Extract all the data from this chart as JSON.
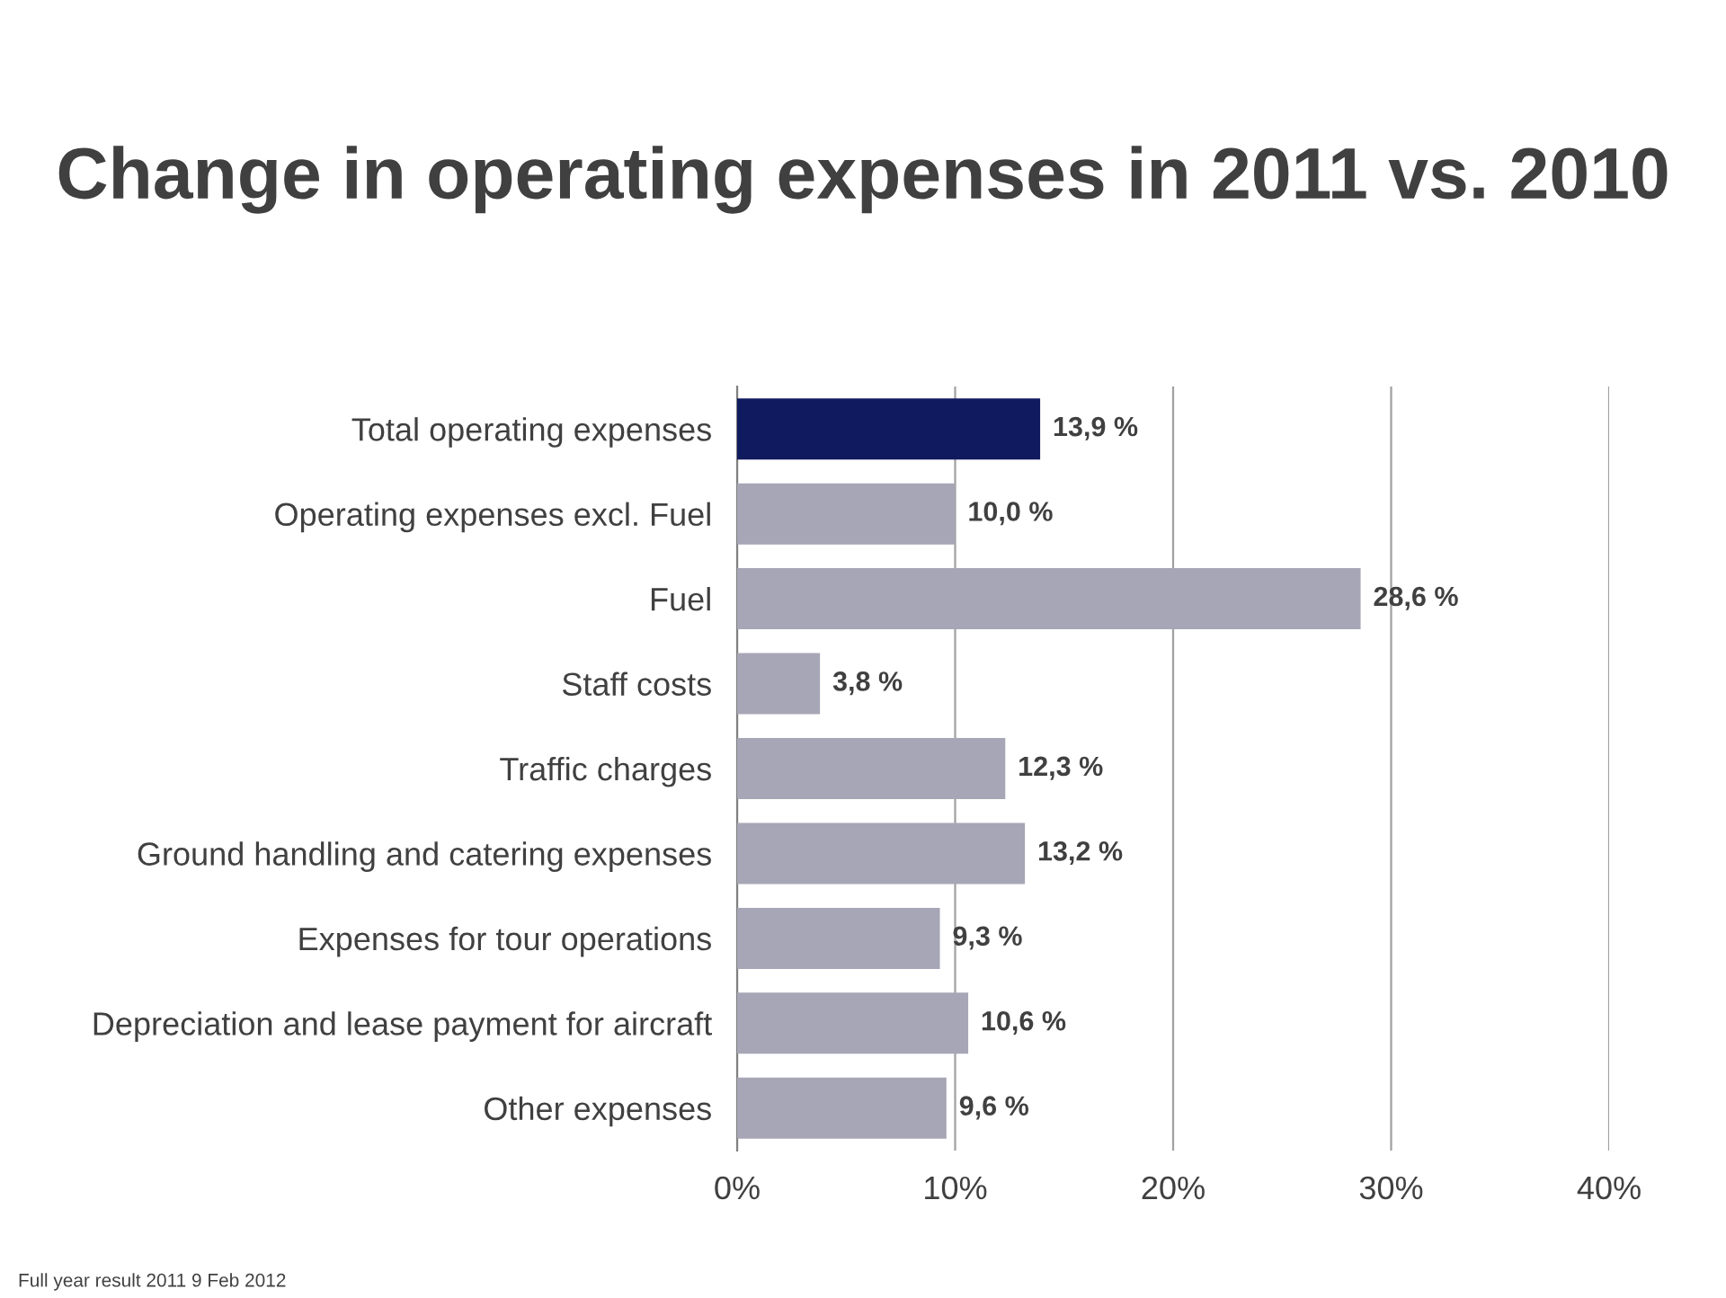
{
  "chart_data": {
    "type": "bar",
    "orientation": "horizontal",
    "title": "Change in operating expenses in 2011 vs. 2010",
    "categories": [
      "Total operating expenses",
      "Operating expenses excl. Fuel",
      "Fuel",
      "Staff costs",
      "Traffic charges",
      "Ground handling and catering expenses",
      "Expenses for tour operations",
      "Depreciation and lease payment for aircraft",
      "Other expenses"
    ],
    "values": [
      13.9,
      10.0,
      28.6,
      3.8,
      12.3,
      13.2,
      9.3,
      10.6,
      9.6
    ],
    "colors": [
      "#101a5e",
      "#a7a6b6",
      "#a7a6b6",
      "#a7a6b6",
      "#a7a6b6",
      "#a7a6b6",
      "#a7a6b6",
      "#a7a6b6",
      "#a7a6b6"
    ],
    "value_labels": [
      "13,9 %",
      "10,0 %",
      "28,6 %",
      "3,8 %",
      "12,3 %",
      "13,2 %",
      "9,3 %",
      "10,6 %",
      "9,6 %"
    ],
    "xlim": [
      0,
      40
    ],
    "xticks": [
      {
        "value": 0,
        "label": "0%"
      },
      {
        "value": 10,
        "label": "10%"
      },
      {
        "value": 20,
        "label": "20%"
      },
      {
        "value": 30,
        "label": "30%"
      },
      {
        "value": 40,
        "label": "40%"
      }
    ],
    "grid": "x",
    "annotations": [
      "Full year result 2011 9 Feb 2012"
    ]
  }
}
